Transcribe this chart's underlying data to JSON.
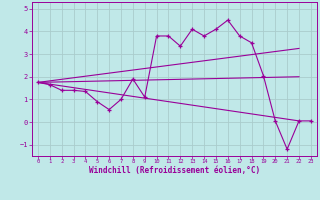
{
  "title": "",
  "xlabel": "Windchill (Refroidissement éolien,°C)",
  "ylabel": "",
  "bg_color": "#c0e8e8",
  "grid_color": "#aacccc",
  "line_color": "#990099",
  "xlim": [
    -0.5,
    23.5
  ],
  "ylim": [
    -1.5,
    5.3
  ],
  "xticks": [
    0,
    1,
    2,
    3,
    4,
    5,
    6,
    7,
    8,
    9,
    10,
    11,
    12,
    13,
    14,
    15,
    16,
    17,
    18,
    19,
    20,
    21,
    22,
    23
  ],
  "yticks": [
    -1,
    0,
    1,
    2,
    3,
    4,
    5
  ],
  "main_x": [
    0,
    1,
    2,
    3,
    4,
    5,
    6,
    7,
    8,
    9,
    10,
    11,
    12,
    13,
    14,
    15,
    16,
    17,
    18,
    19,
    20,
    21,
    22,
    23
  ],
  "main_y": [
    1.75,
    1.65,
    1.4,
    1.4,
    1.35,
    0.9,
    0.55,
    1.0,
    1.9,
    1.1,
    3.8,
    3.8,
    3.35,
    4.1,
    3.8,
    4.1,
    4.5,
    3.8,
    3.5,
    2.05,
    0.05,
    -1.2,
    0.05,
    0.05
  ],
  "trend1_x": [
    0,
    22
  ],
  "trend1_y": [
    1.75,
    3.25
  ],
  "trend2_x": [
    0,
    22
  ],
  "trend2_y": [
    1.75,
    2.0
  ],
  "trend3_x": [
    0,
    22
  ],
  "trend3_y": [
    1.75,
    0.05
  ]
}
